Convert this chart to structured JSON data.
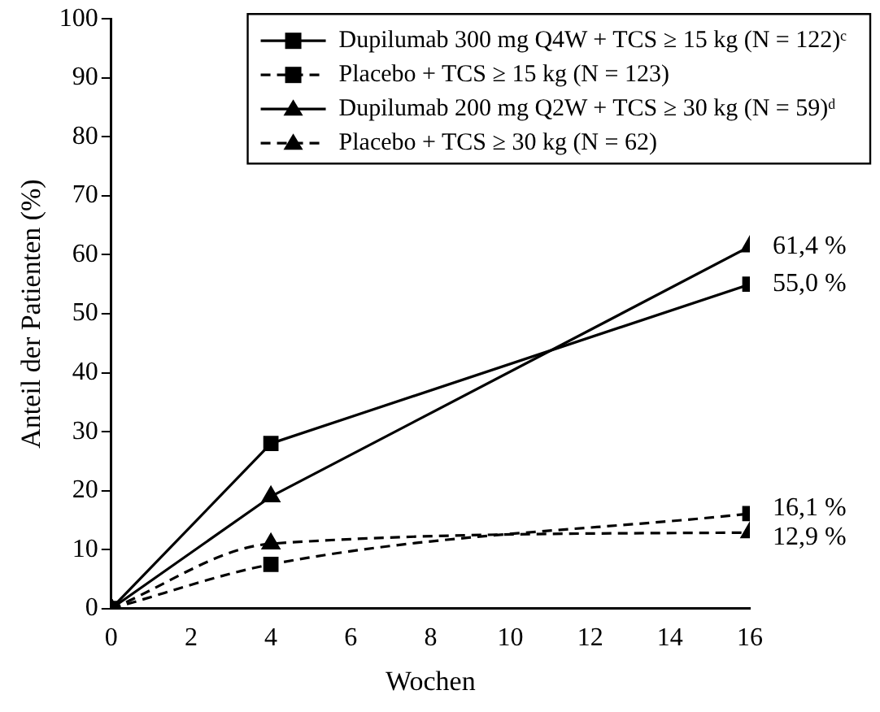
{
  "chart_data": {
    "type": "line",
    "xlabel": "Wochen",
    "ylabel": "Anteil der Patienten (%)",
    "x": [
      0,
      4,
      16
    ],
    "series": [
      {
        "name": "Dupilumab 300 mg Q4W + TCS ≥ 15 kg (N = 122)ᶜ",
        "color": "#000000",
        "values": [
          0,
          28,
          55.0
        ],
        "marker": "square",
        "line_style": "solid",
        "value_labels": [
          null,
          null,
          "55,0 %"
        ]
      },
      {
        "name": "Placebo + TCS ≥ 15 kg (N = 123)",
        "color": "#000000",
        "values": [
          0,
          7.5,
          16.1
        ],
        "marker": "square",
        "line_style": "dashed",
        "value_labels": [
          null,
          null,
          "16,1 %"
        ]
      },
      {
        "name": "Dupilumab 200 mg Q2W + TCS ≥ 30 kg (N = 59)ᵈ",
        "color": "#000000",
        "values": [
          0,
          19,
          61.4
        ],
        "marker": "triangle",
        "line_style": "solid",
        "value_labels": [
          null,
          null,
          "61,4 %"
        ]
      },
      {
        "name": "Placebo + TCS ≥ 30 kg (N = 62)",
        "color": "#000000",
        "values": [
          0,
          11,
          12.9
        ],
        "marker": "triangle",
        "line_style": "dashed",
        "value_labels": [
          null,
          null,
          "12,9 %"
        ]
      }
    ],
    "xlim": [
      0,
      16
    ],
    "xticks": [
      0,
      2,
      4,
      6,
      8,
      10,
      12,
      14,
      16
    ],
    "ylim": [
      0,
      100
    ],
    "yticks": [
      0,
      10,
      20,
      30,
      40,
      50,
      60,
      70,
      80,
      90,
      100
    ],
    "grid": false,
    "legend": "top right"
  }
}
